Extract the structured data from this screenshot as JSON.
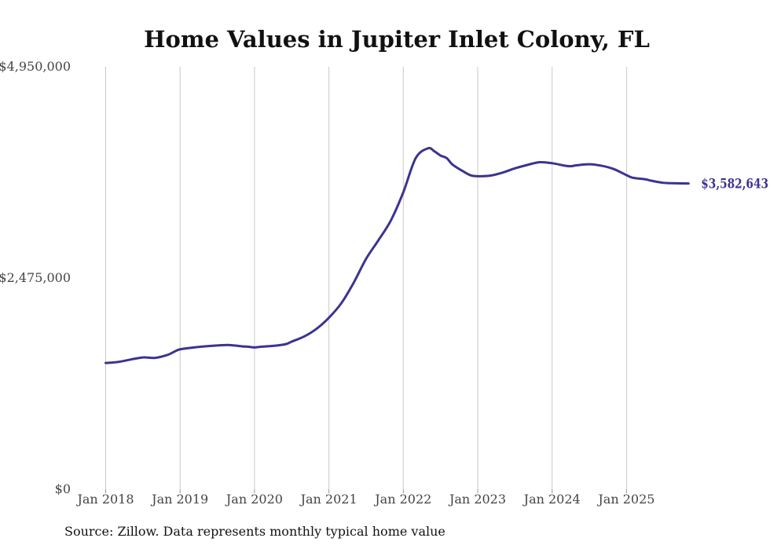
{
  "chart_data": {
    "type": "line",
    "title": "Home Values in Jupiter Inlet Colony, FL",
    "xlabel": "",
    "ylabel": "",
    "ylim": [
      0,
      4950000
    ],
    "yticks": [
      {
        "value": 0,
        "label": "$0"
      },
      {
        "value": 2475000,
        "label": "$2,475,000"
      },
      {
        "value": 4950000,
        "label": "$4,950,000"
      }
    ],
    "xlim": [
      2018.0,
      2026.0
    ],
    "xticks": [
      {
        "value": 2018,
        "label": "Jan 2018"
      },
      {
        "value": 2019,
        "label": "Jan 2019"
      },
      {
        "value": 2020,
        "label": "Jan 2020"
      },
      {
        "value": 2021,
        "label": "Jan 2021"
      },
      {
        "value": 2022,
        "label": "Jan 2022"
      },
      {
        "value": 2023,
        "label": "Jan 2023"
      },
      {
        "value": 2024,
        "label": "Jan 2024"
      },
      {
        "value": 2025,
        "label": "Jan 2025"
      }
    ],
    "grid": "vertical",
    "series": [
      {
        "name": "Typical home value",
        "color": "#3b3490",
        "end_label": "$3,582,643",
        "x": [
          2018.0,
          2018.167,
          2018.333,
          2018.5,
          2018.667,
          2018.833,
          2018.917,
          2019.0,
          2019.167,
          2019.333,
          2019.5,
          2019.667,
          2019.833,
          2019.917,
          2020.0,
          2020.083,
          2020.25,
          2020.417,
          2020.5,
          2020.667,
          2020.833,
          2021.0,
          2021.167,
          2021.333,
          2021.5,
          2021.667,
          2021.833,
          2022.0,
          2022.167,
          2022.333,
          2022.417,
          2022.5,
          2022.583,
          2022.667,
          2022.833,
          2022.917,
          2023.0,
          2023.167,
          2023.333,
          2023.5,
          2023.667,
          2023.833,
          2024.0,
          2024.167,
          2024.25,
          2024.333,
          2024.5,
          2024.667,
          2024.833,
          2025.0,
          2025.083,
          2025.25,
          2025.333,
          2025.5,
          2025.667,
          2025.833
        ],
        "values": [
          1480000,
          1492000,
          1520000,
          1545000,
          1540000,
          1575000,
          1610000,
          1640000,
          1660000,
          1675000,
          1685000,
          1690000,
          1675000,
          1670000,
          1662000,
          1670000,
          1680000,
          1700000,
          1730000,
          1790000,
          1880000,
          2010000,
          2180000,
          2420000,
          2700000,
          2920000,
          3150000,
          3480000,
          3880000,
          3995000,
          3960000,
          3910000,
          3880000,
          3800000,
          3710000,
          3675000,
          3668000,
          3675000,
          3710000,
          3760000,
          3800000,
          3832000,
          3820000,
          3792000,
          3785000,
          3796000,
          3808000,
          3790000,
          3750000,
          3680000,
          3650000,
          3632000,
          3615000,
          3590000,
          3585000,
          3582643
        ]
      }
    ]
  },
  "source_note": "Source: Zillow. Data represents monthly typical home value"
}
